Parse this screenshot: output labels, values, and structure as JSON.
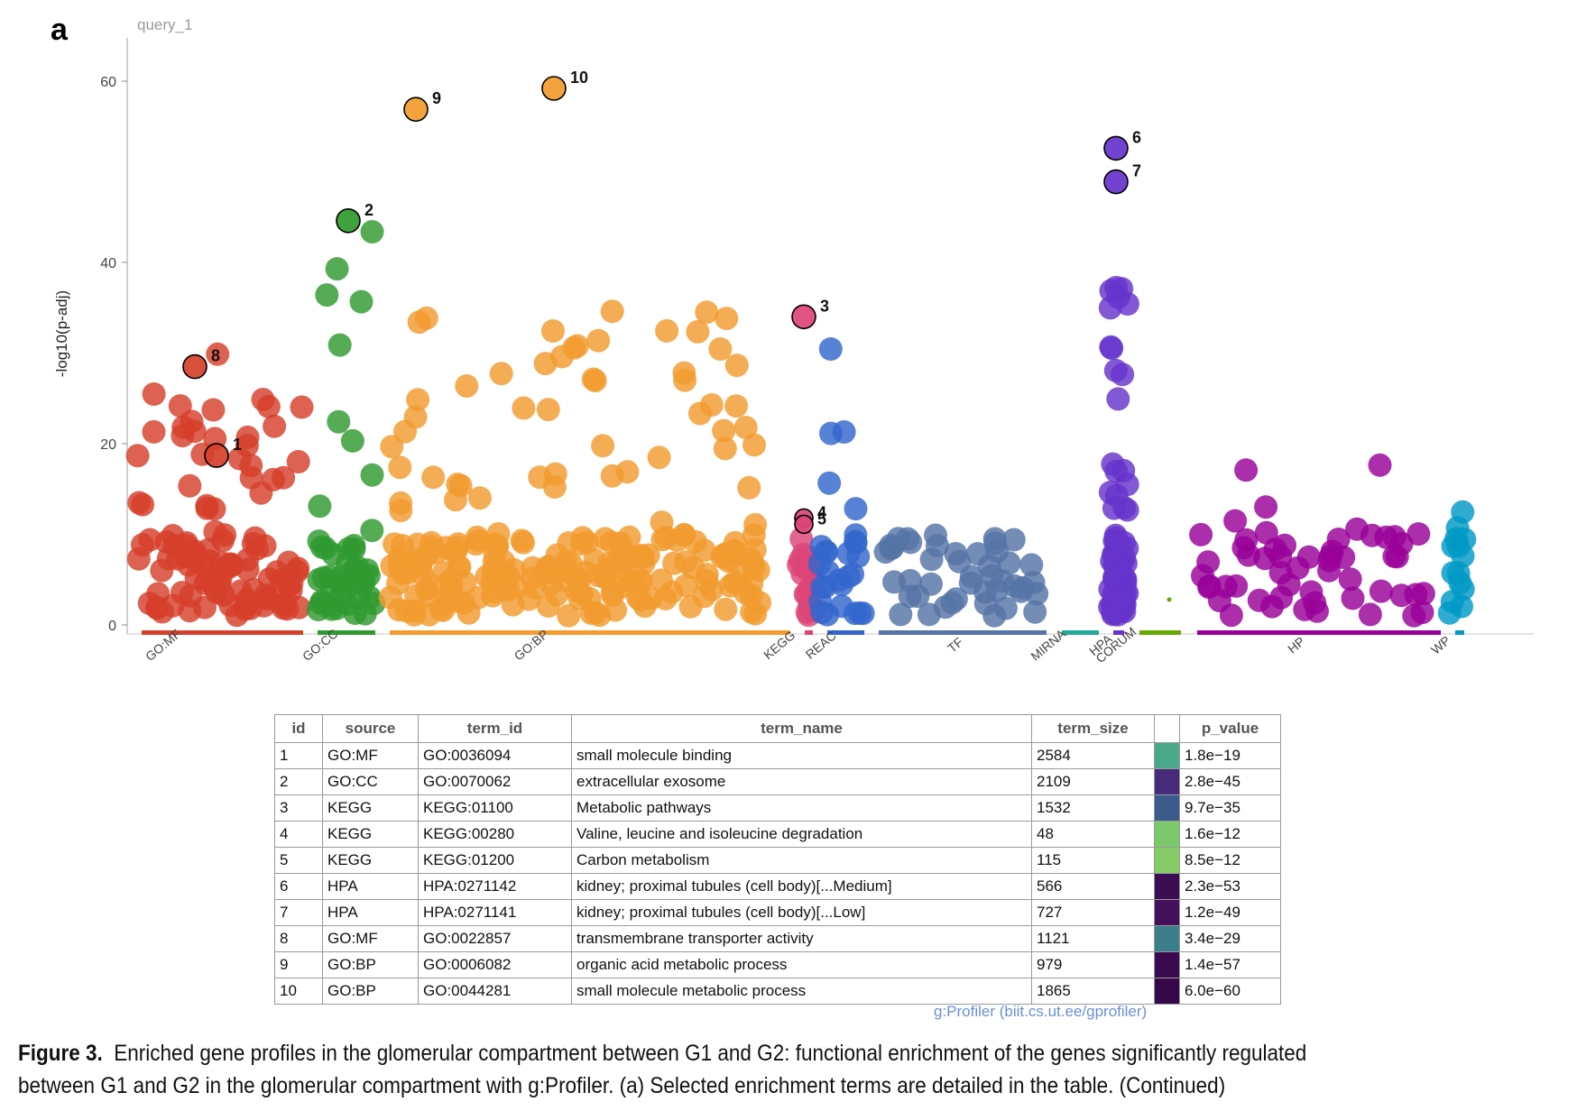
{
  "panel_letter": "a",
  "query_label": "query_1",
  "chart_data": {
    "type": "scatter",
    "ylabel": "-log10(p-adj)",
    "ylim": [
      0,
      62
    ],
    "yticks": [
      0,
      20,
      40,
      60
    ],
    "grid": false,
    "sources": [
      {
        "name": "GO:MF",
        "color": "#d5402b"
      },
      {
        "name": "GO:CC",
        "color": "#2f9a2f"
      },
      {
        "name": "GO:BP",
        "color": "#f29b2e"
      },
      {
        "name": "KEGG",
        "color": "#dd4477"
      },
      {
        "name": "REAC",
        "color": "#3366cc"
      },
      {
        "name": "TF",
        "color": "#5574a6"
      },
      {
        "name": "MIRNA",
        "color": "#22aa99"
      },
      {
        "name": "HPA",
        "color": "#6633cc"
      },
      {
        "name": "CORUM",
        "color": "#66aa00"
      },
      {
        "name": "HP",
        "color": "#990099"
      },
      {
        "name": "WP",
        "color": "#0099c6"
      }
    ],
    "highlighted": [
      {
        "id": "1",
        "source": "GO:MF",
        "y": 18.7
      },
      {
        "id": "2",
        "source": "GO:CC",
        "y": 44.6
      },
      {
        "id": "3",
        "source": "KEGG",
        "y": 34.0
      },
      {
        "id": "4",
        "source": "KEGG",
        "y": 11.8
      },
      {
        "id": "5",
        "source": "KEGG",
        "y": 11.1
      },
      {
        "id": "6",
        "source": "HPA",
        "y": 52.6
      },
      {
        "id": "7",
        "source": "HPA",
        "y": 48.9
      },
      {
        "id": "8",
        "source": "GO:MF",
        "y": 28.5
      },
      {
        "id": "9",
        "source": "GO:BP",
        "y": 56.9
      },
      {
        "id": "10",
        "source": "GO:BP",
        "y": 59.2
      }
    ]
  },
  "table": {
    "headers": [
      "id",
      "source",
      "term_id",
      "term_name",
      "term_size",
      "",
      "p_value"
    ],
    "rows": [
      {
        "id": "1",
        "source": "GO:MF",
        "term_id": "GO:0036094",
        "term_name": "small molecule binding",
        "term_size": "2584",
        "color": "#4aa98a",
        "p_value": "1.8e−19"
      },
      {
        "id": "2",
        "source": "GO:CC",
        "term_id": "GO:0070062",
        "term_name": "extracellular exosome",
        "term_size": "2109",
        "color": "#472a7a",
        "p_value": "2.8e−45"
      },
      {
        "id": "3",
        "source": "KEGG",
        "term_id": "KEGG:01100",
        "term_name": "Metabolic pathways",
        "term_size": "1532",
        "color": "#3b5a8c",
        "p_value": "9.7e−35"
      },
      {
        "id": "4",
        "source": "KEGG",
        "term_id": "KEGG:00280",
        "term_name": "Valine, leucine and isoleucine degradation",
        "term_size": " 48",
        "color": "#7cc96a",
        "p_value": "1.6e−12"
      },
      {
        "id": "5",
        "source": "KEGG",
        "term_id": "KEGG:01200",
        "term_name": "Carbon metabolism",
        "term_size": " 115",
        "color": "#86cc66",
        "p_value": "8.5e−12"
      },
      {
        "id": "6",
        "source": "HPA",
        "term_id": "HPA:0271142",
        "term_name": "kidney; proximal tubules (cell body)[...Medium]",
        "term_size": " 566",
        "color": "#3b0d52",
        "p_value": "2.3e−53"
      },
      {
        "id": "7",
        "source": "HPA",
        "term_id": "HPA:0271141",
        "term_name": "kidney; proximal tubules (cell body)[...Low]",
        "term_size": " 727",
        "color": "#44105c",
        "p_value": "1.2e−49"
      },
      {
        "id": "8",
        "source": "GO:MF",
        "term_id": "GO:0022857",
        "term_name": "transmembrane transporter activity",
        "term_size": "1121",
        "color": "#3a7f8a",
        "p_value": "3.4e−29"
      },
      {
        "id": "9",
        "source": "GO:BP",
        "term_id": "GO:0006082",
        "term_name": "organic acid metabolic process",
        "term_size": " 979",
        "color": "#3a0a4e",
        "p_value": "1.4e−57"
      },
      {
        "id": "10",
        "source": "GO:BP",
        "term_id": "GO:0044281",
        "term_name": "small molecule metabolic process",
        "term_size": "1865",
        "color": "#36084a",
        "p_value": "6.0e−60"
      }
    ]
  },
  "credit": "g:Profiler (biit.cs.ut.ee/gprofiler)",
  "caption": {
    "label": "Figure 3.",
    "line1": "Enriched gene profiles in the glomerular compartment between G1 and G2: functional enrichment of the genes significantly regulated",
    "line2": "between G1 and G2 in the glomerular compartment with g:Profiler. (a) Selected enrichment terms are detailed in the table. (Continued)"
  }
}
